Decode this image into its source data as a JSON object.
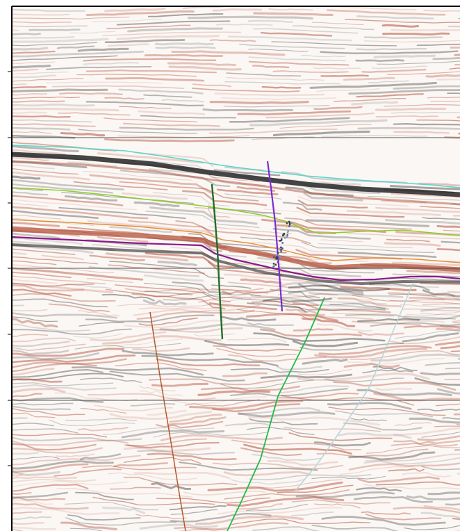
{
  "seismic_section": {
    "palette": {
      "background": "#fbf7f4",
      "positive_amplitude": "#b4503a",
      "negative_amplitude": "#262626",
      "frame": "#000000",
      "grid": "#555555"
    },
    "horizons": [
      {
        "id": "horizon-cyan",
        "color": "#5ad6cc"
      },
      {
        "id": "horizon-green",
        "color": "#8ccf2c"
      },
      {
        "id": "horizon-orange",
        "color": "#e98d33"
      },
      {
        "id": "horizon-purple",
        "color": "#8c1a8c"
      }
    ],
    "faults": [
      {
        "id": "fault-dark-green",
        "color": "#1f6e2a"
      },
      {
        "id": "fault-violet",
        "color": "#7a2bd1"
      },
      {
        "id": "fault-green",
        "color": "#1fba4a"
      },
      {
        "id": "fault-light-cyan",
        "color": "#b9d6dc"
      },
      {
        "id": "fault-brown",
        "color": "#b25a2c"
      }
    ],
    "fault_picks_icon": "scatter-points-icon"
  }
}
